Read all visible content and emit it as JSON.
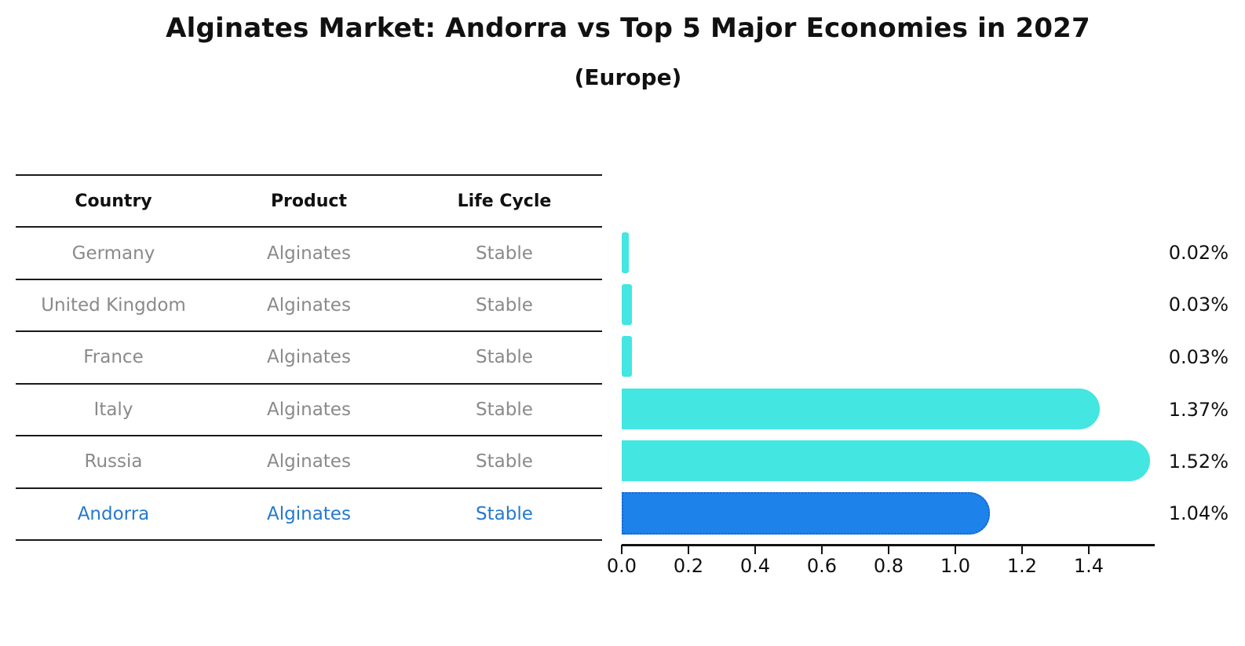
{
  "title": "Alginates Market: Andorra vs Top 5 Major Economies in 2027",
  "subtitle": "(Europe)",
  "table": {
    "headers": [
      "Country",
      "Product",
      "Life Cycle"
    ],
    "rows": [
      {
        "country": "Germany",
        "product": "Alginates",
        "life_cycle": "Stable"
      },
      {
        "country": "United Kingdom",
        "product": "Alginates",
        "life_cycle": "Stable"
      },
      {
        "country": "France",
        "product": "Alginates",
        "life_cycle": "Stable"
      },
      {
        "country": "Italy",
        "product": "Alginates",
        "life_cycle": "Stable"
      },
      {
        "country": "Russia",
        "product": "Alginates",
        "life_cycle": "Stable"
      },
      {
        "country": "Andorra",
        "product": "Alginates",
        "life_cycle": "Stable"
      }
    ],
    "highlighted_row": "Andorra"
  },
  "chart_data": {
    "type": "bar",
    "orientation": "horizontal",
    "title": "Alginates Market: Andorra vs Top 5 Major Economies in 2027",
    "subtitle": "(Europe)",
    "categories": [
      "Germany",
      "United Kingdom",
      "France",
      "Italy",
      "Russia",
      "Andorra"
    ],
    "values": [
      0.02,
      0.03,
      0.03,
      1.37,
      1.52,
      1.04
    ],
    "value_labels": [
      "0.02%",
      "0.03%",
      "0.03%",
      "1.37%",
      "1.52%",
      "1.04%"
    ],
    "unit": "%",
    "x_ticks": [
      0.0,
      0.2,
      0.4,
      0.6,
      0.8,
      1.0,
      1.2,
      1.4
    ],
    "x_tick_labels": [
      "0.0",
      "0.2",
      "0.4",
      "0.6",
      "0.8",
      "1.0",
      "1.2",
      "1.4"
    ],
    "xlim": [
      0,
      1.6
    ],
    "grid": false,
    "legend": false,
    "highlight_index": 5,
    "colors": {
      "bar": "#43E6E0",
      "highlight_bar": "#1E82EB",
      "highlight_border": "#1565D0",
      "highlight_text": "#2479CC",
      "row_text": "#8A8A8A",
      "axis": "#111111",
      "value_label": "#111111"
    }
  }
}
